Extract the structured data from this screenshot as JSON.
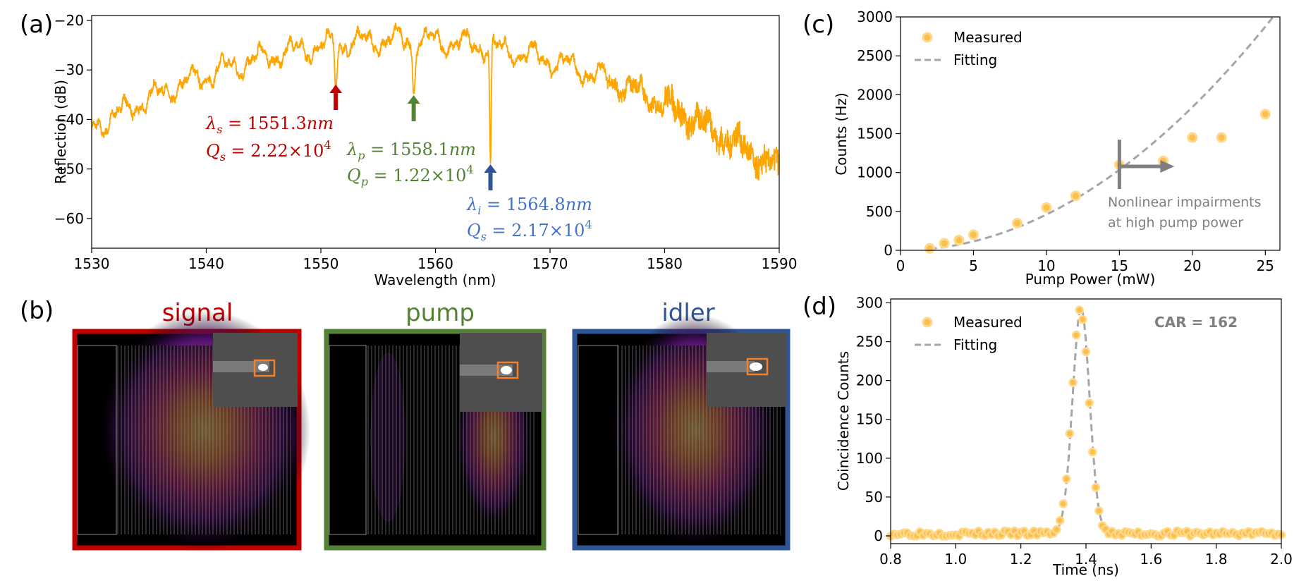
{
  "panel_labels": {
    "a": "(a)",
    "b": "(b)",
    "c": "(c)",
    "d": "(d)"
  },
  "panel_b": {
    "signal_label": "signal",
    "pump_label": "pump",
    "idler_label": "idler",
    "colors": {
      "signal": "#c00000",
      "pump": "#548235",
      "idler": "#2f5597"
    }
  },
  "chart_data": [
    {
      "id": "a",
      "type": "line",
      "xlabel": "Wavelength (nm)",
      "ylabel": "Reflection (dB)",
      "xlim": [
        1530,
        1590
      ],
      "ylim": [
        -66,
        -19
      ],
      "xticks": [
        1530,
        1540,
        1550,
        1560,
        1570,
        1580,
        1590
      ],
      "yticks": [
        -20,
        -30,
        -40,
        -50,
        -60
      ],
      "xtick_labels": [
        "1530",
        "1540",
        "1550",
        "1560",
        "1570",
        "1580",
        "1590"
      ],
      "ytick_labels": [
        "−20",
        "−30",
        "−40",
        "−50",
        "−60"
      ],
      "line_color": "#ffa500",
      "envelope": {
        "peak_x": 1557,
        "peak_y": -24,
        "curvature": 0.0245
      },
      "dips": [
        {
          "x": 1551.3,
          "depth": 8,
          "width": 0.15
        },
        {
          "x": 1558.1,
          "depth": 10,
          "width": 0.15
        },
        {
          "x": 1564.8,
          "depth": 23,
          "width": 0.1
        }
      ],
      "annotations": {
        "signal": {
          "line1_sym": "λ",
          "line1_sub": "s",
          "line1_rest": " = 1551.3",
          "line1_unit": "nm",
          "line2_sym": "Q",
          "line2_sub": "s",
          "line2_rest": " = 2.22×10",
          "line2_exp": "4",
          "color": "#c00000",
          "arrow_x": 1551.3
        },
        "pump": {
          "line1_sym": "λ",
          "line1_sub": "p",
          "line1_rest": " = 1558.1",
          "line1_unit": "nm",
          "line2_sym": "Q",
          "line2_sub": "p",
          "line2_rest": " = 1.22×10",
          "line2_exp": "4",
          "color": "#548235",
          "arrow_x": 1558.1
        },
        "idler": {
          "line1_sym": "λ",
          "line1_sub": "i",
          "line1_rest": " = 1564.8",
          "line1_unit": "nm",
          "line2_sym": "Q",
          "line2_sub": "s",
          "line2_rest": " = 2.17×10",
          "line2_exp": "4",
          "color": "#4472c4",
          "arrow_x": 1564.8
        }
      }
    },
    {
      "id": "c",
      "type": "scatter",
      "xlabel": "Pump Power (mW)",
      "ylabel": "Counts (Hz)",
      "xlim": [
        0,
        26
      ],
      "ylim": [
        0,
        3000
      ],
      "xticks": [
        0,
        5,
        10,
        15,
        20,
        25
      ],
      "yticks": [
        0,
        500,
        1000,
        1500,
        2000,
        2500,
        3000
      ],
      "xtick_labels": [
        "0",
        "5",
        "10",
        "15",
        "20",
        "25"
      ],
      "ytick_labels": [
        "0",
        "500",
        "1000",
        "1500",
        "2000",
        "2500",
        "3000"
      ],
      "series": [
        {
          "name": "Measured",
          "x": [
            2,
            3,
            4,
            5,
            8,
            10,
            12,
            15,
            18,
            20,
            22,
            25
          ],
          "y": [
            25,
            90,
            130,
            200,
            350,
            550,
            700,
            1100,
            1150,
            1450,
            1450,
            1750
          ]
        },
        {
          "name": "Fitting",
          "fit": "quadratic",
          "coef": 4.6,
          "x_range": [
            2,
            26
          ]
        }
      ],
      "legend": [
        "Measured",
        "Fitting"
      ],
      "annotation_line1": "Nonlinear impairments",
      "annotation_line2": "at high pump power",
      "marker_x": 15
    },
    {
      "id": "d",
      "type": "scatter",
      "xlabel": "Time (ns)",
      "ylabel": "Coincidence Counts",
      "xlim": [
        0.8,
        2.0
      ],
      "ylim": [
        -10,
        305
      ],
      "xticks": [
        0.8,
        1.0,
        1.2,
        1.4,
        1.6,
        1.8,
        2.0
      ],
      "yticks": [
        0,
        50,
        100,
        150,
        200,
        250,
        300
      ],
      "xtick_labels": [
        "0.8",
        "1.0",
        "1.2",
        "1.4",
        "1.6",
        "1.8",
        "2.0"
      ],
      "ytick_labels": [
        "0",
        "50",
        "100",
        "150",
        "200",
        "250",
        "300"
      ],
      "series": [
        {
          "name": "Measured",
          "peak": {
            "center": 1.383,
            "amp": 288,
            "sigma": 0.026,
            "baseline": 3
          }
        },
        {
          "name": "Fitting",
          "peak": {
            "center": 1.385,
            "amp": 290,
            "sigma": 0.026,
            "baseline": 3
          }
        }
      ],
      "legend": [
        "Measured",
        "Fitting"
      ],
      "car_label": "CAR = 162"
    }
  ]
}
